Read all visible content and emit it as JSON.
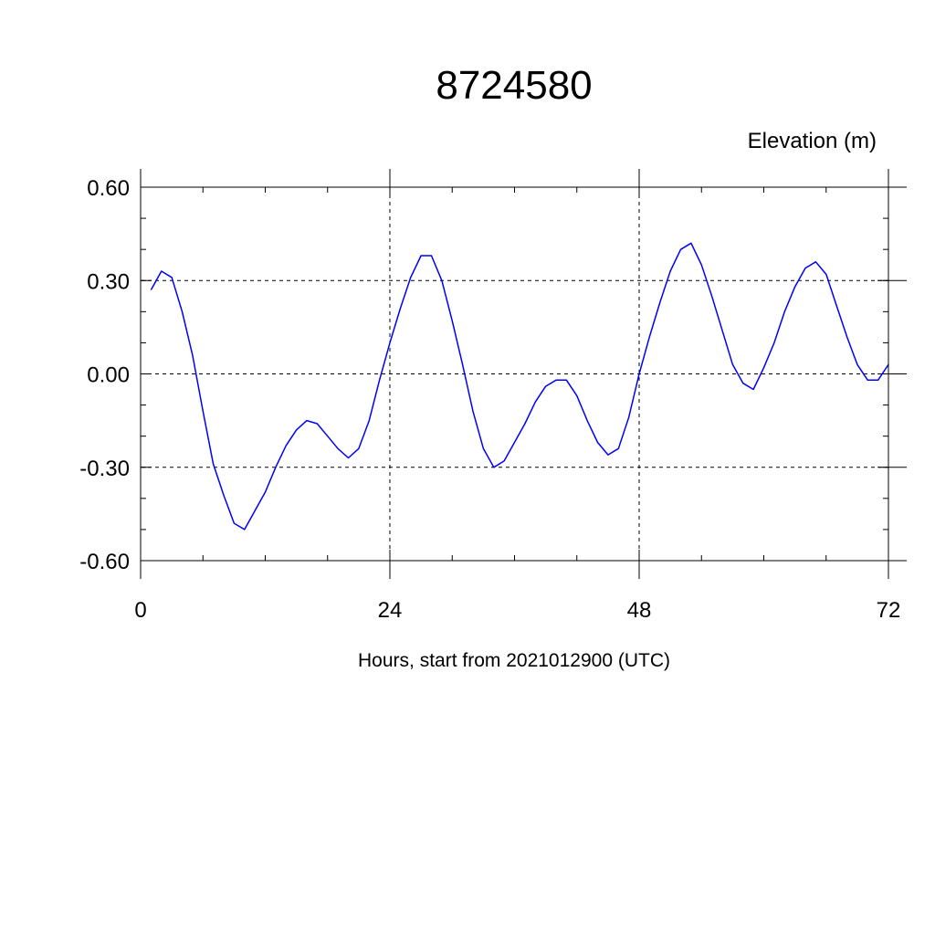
{
  "chart_data": {
    "type": "line",
    "title": "8724580",
    "unit_label": "Elevation (m)",
    "xlabel": "Hours, start from 2021012900 (UTC)",
    "xlim": [
      0,
      72
    ],
    "ylim": [
      -0.6,
      0.6
    ],
    "x_ticks": [
      0,
      24,
      48,
      72
    ],
    "x_tick_labels": [
      "0",
      "24",
      "48",
      "72"
    ],
    "x_minor_step": 6,
    "y_ticks": [
      -0.6,
      -0.3,
      0.0,
      0.3,
      0.6
    ],
    "y_tick_labels": [
      "-0.60",
      "-0.30",
      "0.00",
      "0.30",
      "0.60"
    ],
    "y_minor_step": 0.1,
    "grid": true,
    "series": [
      {
        "color": "#0000ff",
        "x": [
          1,
          2,
          3,
          4,
          5,
          6,
          7,
          8,
          9,
          10,
          11,
          12,
          13,
          14,
          15,
          16,
          17,
          18,
          19,
          20,
          21,
          22,
          23,
          24,
          25,
          26,
          27,
          28,
          29,
          30,
          31,
          32,
          33,
          34,
          35,
          36,
          37,
          38,
          39,
          40,
          41,
          42,
          43,
          44,
          45,
          46,
          47,
          48,
          49,
          50,
          51,
          52,
          53,
          54,
          55,
          56,
          57,
          58,
          59,
          60,
          61,
          62,
          63,
          64,
          65,
          66,
          67,
          68,
          69,
          70,
          71,
          72
        ],
        "values": [
          0.27,
          0.33,
          0.31,
          0.2,
          0.06,
          -0.12,
          -0.29,
          -0.39,
          -0.48,
          -0.5,
          -0.44,
          -0.38,
          -0.3,
          -0.23,
          -0.18,
          -0.15,
          -0.16,
          -0.2,
          -0.24,
          -0.27,
          -0.24,
          -0.15,
          -0.02,
          0.1,
          0.21,
          0.31,
          0.38,
          0.38,
          0.3,
          0.17,
          0.03,
          -0.12,
          -0.24,
          -0.3,
          -0.28,
          -0.22,
          -0.16,
          -0.09,
          -0.04,
          -0.02,
          -0.02,
          -0.07,
          -0.15,
          -0.22,
          -0.26,
          -0.24,
          -0.14,
          0.0,
          0.12,
          0.23,
          0.33,
          0.4,
          0.42,
          0.35,
          0.25,
          0.14,
          0.03,
          -0.03,
          -0.05,
          0.02,
          0.1,
          0.2,
          0.28,
          0.34,
          0.36,
          0.32,
          0.22,
          0.12,
          0.03,
          -0.02,
          -0.02,
          0.03
        ]
      }
    ]
  }
}
